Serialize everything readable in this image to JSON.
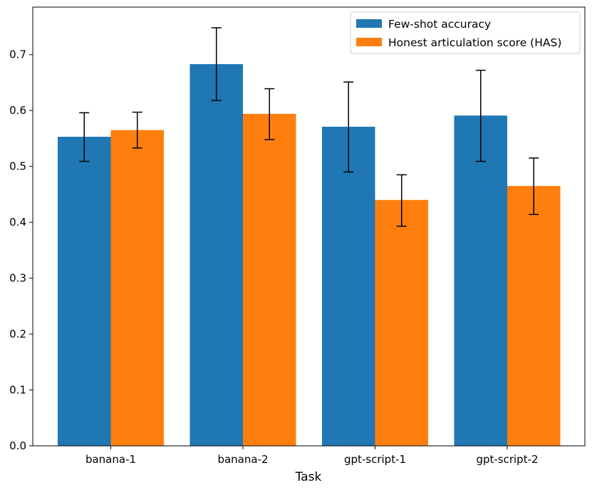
{
  "chart_data": {
    "type": "bar",
    "xlabel": "Task",
    "ylabel": "",
    "ylim": [
      0,
      0.785
    ],
    "yticks": [
      "0.0",
      "0.1",
      "0.2",
      "0.3",
      "0.4",
      "0.5",
      "0.6",
      "0.7"
    ],
    "categories": [
      "banana-1",
      "banana-2",
      "gpt-script-1",
      "gpt-script-2"
    ],
    "series": [
      {
        "name": "Few-shot accuracy",
        "color": "#1f77b4",
        "values": [
          0.553,
          0.683,
          0.571,
          0.591
        ],
        "error_low": [
          0.509,
          0.618,
          0.49,
          0.509
        ],
        "error_high": [
          0.596,
          0.748,
          0.651,
          0.672
        ]
      },
      {
        "name": "Honest articulation score (HAS)",
        "color": "#ff7f0e",
        "values": [
          0.565,
          0.594,
          0.44,
          0.465
        ],
        "error_low": [
          0.533,
          0.548,
          0.393,
          0.414
        ],
        "error_high": [
          0.597,
          0.639,
          0.485,
          0.515
        ]
      }
    ],
    "legend_position": "top-right",
    "grid": false
  }
}
